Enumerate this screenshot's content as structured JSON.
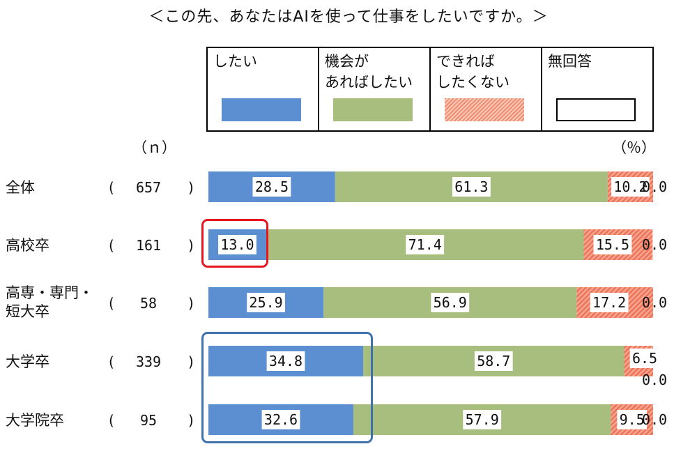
{
  "title": "＜この先、あなたはAIを使って仕事をしたいですか。＞",
  "n_header": "（ｎ）",
  "pct_header": "（％）",
  "colors": {
    "したい": "#5b8fd1",
    "機会があればしたい": "#a7be7e",
    "できればしたくない": "#f08c72",
    "無回答": "#ffffff"
  },
  "legend": [
    {
      "label": "したい",
      "series": "したい"
    },
    {
      "label": "機会が\nあればしたい",
      "series": "機会があればしたい"
    },
    {
      "label": "できれば\nしたくない",
      "series": "できればしたくない"
    },
    {
      "label": "無回答",
      "series": "無回答"
    }
  ],
  "rows": [
    {
      "label": "全体",
      "n": "657"
    },
    {
      "label": "高校卒",
      "n": "161"
    },
    {
      "label": "高専・専門・\n短大卒",
      "n": "58"
    },
    {
      "label": "大学卒",
      "n": "339"
    },
    {
      "label": "大学院卒",
      "n": "95"
    }
  ],
  "chart_data": {
    "type": "bar",
    "orientation": "horizontal",
    "stacked": "100%",
    "categories": [
      "全体",
      "高校卒",
      "高専・専門・短大卒",
      "大学卒",
      "大学院卒"
    ],
    "series": [
      {
        "name": "したい",
        "values": [
          28.5,
          13.0,
          25.9,
          34.8,
          32.6
        ]
      },
      {
        "name": "機会があればしたい",
        "values": [
          61.3,
          71.4,
          56.9,
          58.7,
          57.9
        ]
      },
      {
        "name": "できればしたくない",
        "values": [
          10.2,
          15.5,
          17.2,
          6.5,
          9.5
        ]
      },
      {
        "name": "無回答",
        "values": [
          0.0,
          0.0,
          0.0,
          0.0,
          0.0
        ]
      }
    ],
    "xlim": [
      0,
      100
    ],
    "legend_position": "top"
  }
}
